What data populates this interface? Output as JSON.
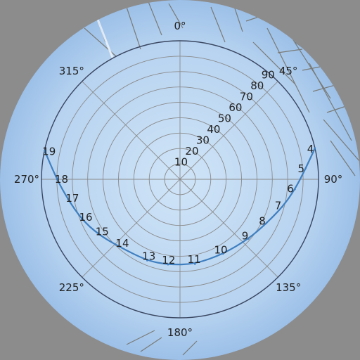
{
  "chart_data": {
    "type": "line",
    "projection": "polar (sun path over fisheye sky photo)",
    "background": "upward fisheye sky photograph with bare tree branches at the edges",
    "angle_labels": [
      "0°",
      "45°",
      "90°",
      "135°",
      "180°",
      "225°",
      "270°",
      "315°"
    ],
    "radial_labels": [
      "10",
      "20",
      "30",
      "40",
      "50",
      "60",
      "70",
      "80",
      "90"
    ],
    "radial_range": [
      0,
      90
    ],
    "grid": true,
    "series": [
      {
        "points": [
          {
            "hour": "4",
            "azimuth": 77,
            "zenith": 90
          },
          {
            "hour": "5",
            "azimuth": 85,
            "zenith": 82
          },
          {
            "hour": "6",
            "azimuth": 95,
            "zenith": 75
          },
          {
            "hour": "7",
            "azimuth": 105,
            "zenith": 69
          },
          {
            "hour": "8",
            "azimuth": 117,
            "zenith": 63
          },
          {
            "hour": "9",
            "azimuth": 131,
            "zenith": 59
          },
          {
            "hour": "10",
            "azimuth": 150,
            "zenith": 56
          },
          {
            "hour": "11",
            "azimuth": 170,
            "zenith": 56
          },
          {
            "hour": "12",
            "azimuth": 188,
            "zenith": 56
          },
          {
            "hour": "13",
            "azimuth": 202,
            "zenith": 57
          },
          {
            "hour": "14",
            "azimuth": 222,
            "zenith": 59
          },
          {
            "hour": "15",
            "azimuth": 236,
            "zenith": 64
          },
          {
            "hour": "16",
            "azimuth": 248,
            "zenith": 69
          },
          {
            "hour": "17",
            "azimuth": 260,
            "zenith": 74
          },
          {
            "hour": "18",
            "azimuth": 270,
            "zenith": 80
          },
          {
            "hour": "19",
            "azimuth": 282,
            "zenith": 90
          }
        ]
      }
    ],
    "colors": {
      "path": "#3f7fc0",
      "grid": "#8a8a8a",
      "outer_ring": "#3a4660",
      "label": "#222222",
      "sky_center": "#cde3f7",
      "sky_edge": "#9fc2e8",
      "page_background": "#8c8c8c"
    }
  }
}
